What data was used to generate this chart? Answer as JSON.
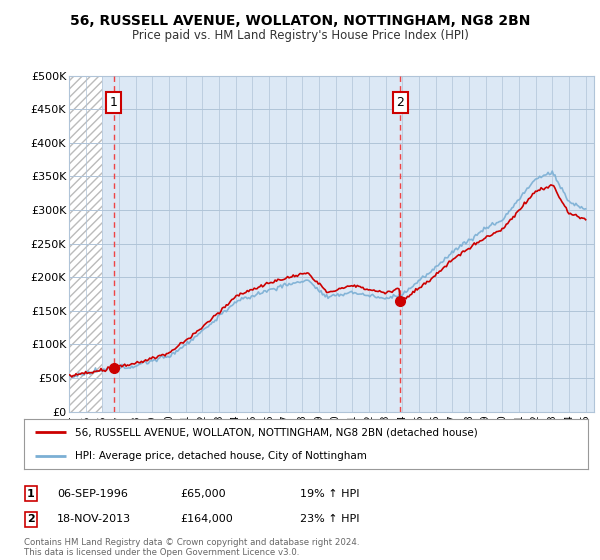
{
  "title": "56, RUSSELL AVENUE, WOLLATON, NOTTINGHAM, NG8 2BN",
  "subtitle": "Price paid vs. HM Land Registry's House Price Index (HPI)",
  "ylim": [
    0,
    500000
  ],
  "yticks": [
    0,
    50000,
    100000,
    150000,
    200000,
    250000,
    300000,
    350000,
    400000,
    450000,
    500000
  ],
  "ytick_labels": [
    "£0",
    "£50K",
    "£100K",
    "£150K",
    "£200K",
    "£250K",
    "£300K",
    "£350K",
    "£400K",
    "£450K",
    "£500K"
  ],
  "sale1_date": 1996.68,
  "sale1_price": 65000,
  "sale2_date": 2013.88,
  "sale2_price": 164000,
  "sale1_label": "1",
  "sale2_label": "2",
  "table_rows": [
    {
      "num": "1",
      "date": "06-SEP-1996",
      "price": "£65,000",
      "hpi": "19% ↑ HPI"
    },
    {
      "num": "2",
      "date": "18-NOV-2013",
      "price": "£164,000",
      "hpi": "23% ↑ HPI"
    }
  ],
  "legend_line1": "56, RUSSELL AVENUE, WOLLATON, NOTTINGHAM, NG8 2BN (detached house)",
  "legend_line2": "HPI: Average price, detached house, City of Nottingham",
  "footer": "Contains HM Land Registry data © Crown copyright and database right 2024.\nThis data is licensed under the Open Government Licence v3.0.",
  "chart_bg_color": "#dce8f5",
  "hatch_bg_color": "#ffffff",
  "hatch_color": "#bbbbbb",
  "grid_color": "#b0c4d8",
  "red_line_color": "#cc0000",
  "blue_line_color": "#7bafd4",
  "dashed_line_color": "#ee4444",
  "xmin": 1994.0,
  "xmax": 2025.5,
  "hatch_xmax": 1996.0,
  "xticks": [
    1994,
    1995,
    1996,
    1997,
    1998,
    1999,
    2000,
    2001,
    2002,
    2003,
    2004,
    2005,
    2006,
    2007,
    2008,
    2009,
    2010,
    2011,
    2012,
    2013,
    2014,
    2015,
    2016,
    2017,
    2018,
    2019,
    2020,
    2021,
    2022,
    2023,
    2024,
    2025
  ]
}
